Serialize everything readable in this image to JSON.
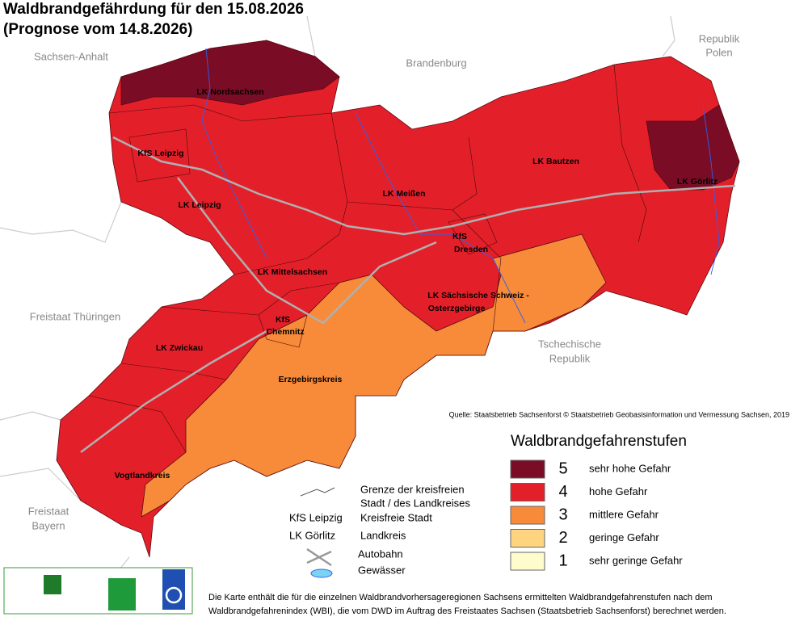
{
  "header": {
    "title": "Waldbrandgefährdung  für den  15.08.2026",
    "subtitle": "(Prognose vom 14.8.2026)"
  },
  "map": {
    "neighbors": [
      "Sachsen-Anhalt",
      "Brandenburg",
      "Republik",
      "Polen",
      "Freistaat Thüringen",
      "Tschechische",
      "Republik",
      "Freistaat",
      "Bayern"
    ],
    "zones": [
      {
        "level": 4
      },
      {
        "level": 3
      },
      {
        "level": 5
      },
      {
        "level": 5
      }
    ],
    "region_labels": [
      "LK Nordsachsen",
      "KfS Leipzig",
      "LK Leipzig",
      "LK Meißen",
      "LK Bautzen",
      "LK Görlitz",
      "KfS",
      "Dresden",
      "LK Mittelsachsen",
      "LK Sächsische Schweiz -",
      "Osterzgebirge",
      "KfS",
      "Chemnitz",
      "LK Zwickau",
      "Erzgebirgskreis",
      "Vogtlandkreis"
    ]
  },
  "source": "Quelle: Staatsbetrieb Sachsenforst  © Staatsbetrieb Geobasisinformation und Vermessung Sachsen, 2019",
  "legend": {
    "title": "Waldbrandgefahrenstufen",
    "items": [
      {
        "level": 5,
        "label": "sehr hohe Gefahr",
        "color": "#7b0c25"
      },
      {
        "level": 4,
        "label": "hohe Gefahr",
        "color": "#e3202a"
      },
      {
        "level": 3,
        "label": "mittlere Gefahr",
        "color": "#f78b3a"
      },
      {
        "level": 2,
        "label": "geringe Gefahr",
        "color": "#fed57e"
      },
      {
        "level": 1,
        "label": "sehr geringe Gefahr",
        "color": "#fefccc"
      }
    ]
  },
  "key": {
    "border": [
      "Grenze der kreisfreien",
      "Stadt / des Landkreises"
    ],
    "city_example": "KfS Leipzig",
    "city": "Kreisfreie Stadt",
    "district_example": "LK Görlitz",
    "district": "Landkreis",
    "autobahn": "Autobahn",
    "water": "Gewässer"
  },
  "logos": {
    "sachsenforst": "Sachsenforst",
    "mais": "mais",
    "dwd": "DWD"
  },
  "footnote": [
    "Die Karte enthält die für die einzelnen Waldbrandvorhersageregionen Sachsens ermittelten Waldbrandgefahrenstufen nach dem",
    "Waldbrandgefahrenindex (WBI), die vom DWD im Auftrag des Freistaates Sachsen (Staatsbetrieb Sachsenforst) berechnet werden."
  ]
}
